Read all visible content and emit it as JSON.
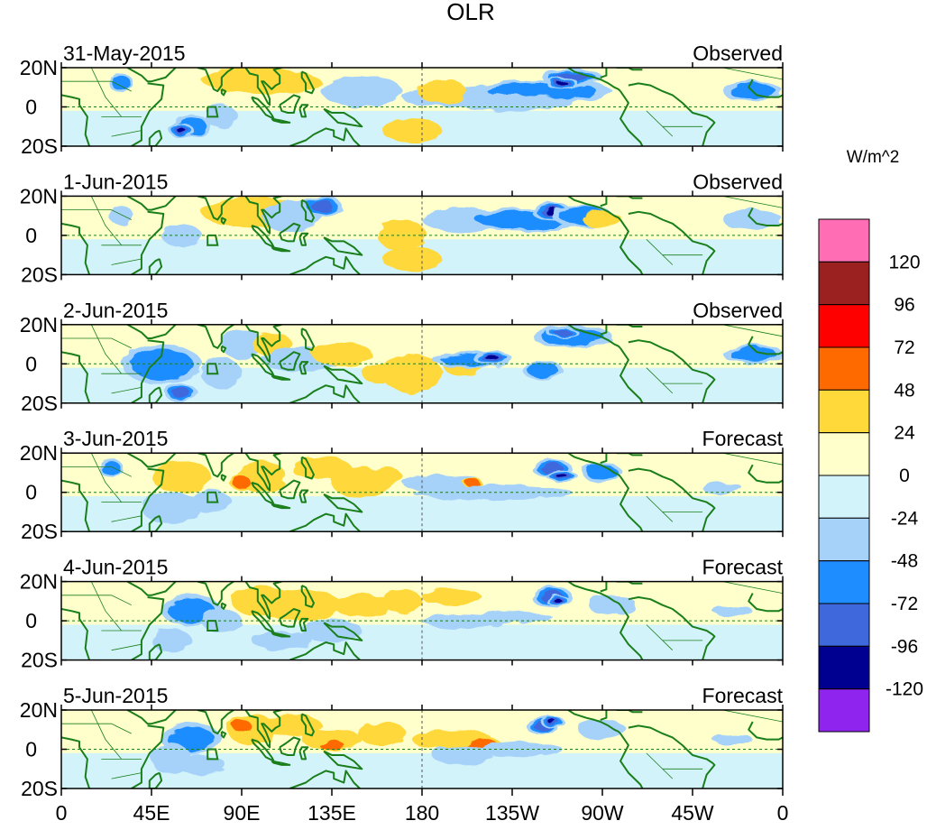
{
  "chart_data": {
    "type": "heatmap",
    "title": "OLR",
    "units": "W/m^2",
    "x_ticks": [
      "0",
      "45E",
      "90E",
      "135E",
      "180",
      "135W",
      "90W",
      "45W",
      "0"
    ],
    "y_ticks": [
      "20N",
      "0",
      "20S"
    ],
    "lon_range": [
      0,
      360
    ],
    "lat_range": [
      -20,
      20
    ],
    "colorbar": {
      "levels": [
        "120",
        "96",
        "72",
        "48",
        "24",
        "0",
        "-24",
        "-48",
        "-72",
        "-96",
        "-120"
      ],
      "colors": [
        "#ff6eb4",
        "#9b2020",
        "#ff0000",
        "#ff6a00",
        "#ffd83a",
        "#ffffcc",
        "#d3f3fb",
        "#a6d2fa",
        "#1e8dff",
        "#3f68dd",
        "#000090",
        "#9024ef"
      ]
    },
    "panels": [
      {
        "date": "31-May-2015",
        "status": "Observed",
        "blobs": [
          [
            95,
            14,
            25,
            7,
            45
          ],
          [
            112,
            12,
            18,
            6,
            30
          ],
          [
            80,
            -5,
            8,
            6,
            -40
          ],
          [
            65,
            -10,
            10,
            6,
            -70
          ],
          [
            60,
            -12,
            6,
            4,
            -100
          ],
          [
            200,
            5,
            30,
            5,
            -45
          ],
          [
            240,
            8,
            35,
            6,
            -55
          ],
          [
            255,
            15,
            15,
            5,
            -90
          ],
          [
            250,
            12,
            8,
            3,
            -110
          ],
          [
            175,
            -12,
            15,
            6,
            30
          ],
          [
            225,
            2,
            30,
            4,
            -30
          ],
          [
            345,
            8,
            15,
            5,
            -50
          ],
          [
            30,
            12,
            6,
            5,
            -70
          ],
          [
            150,
            8,
            20,
            8,
            -30
          ],
          [
            190,
            8,
            12,
            6,
            25
          ]
        ]
      },
      {
        "date": "1-Jun-2015",
        "status": "Observed",
        "blobs": [
          [
            95,
            12,
            25,
            8,
            35
          ],
          [
            115,
            10,
            15,
            8,
            -40
          ],
          [
            130,
            15,
            10,
            5,
            -75
          ],
          [
            170,
            0,
            12,
            8,
            25
          ],
          [
            175,
            -12,
            15,
            6,
            30
          ],
          [
            200,
            8,
            20,
            6,
            -45
          ],
          [
            230,
            8,
            30,
            6,
            -60
          ],
          [
            245,
            12,
            10,
            5,
            -100
          ],
          [
            260,
            10,
            15,
            6,
            -55
          ],
          [
            270,
            8,
            10,
            4,
            40
          ],
          [
            210,
            -5,
            60,
            6,
            -15
          ],
          [
            45,
            5,
            10,
            8,
            20
          ],
          [
            60,
            0,
            10,
            6,
            -35
          ],
          [
            345,
            8,
            15,
            5,
            -40
          ],
          [
            30,
            10,
            6,
            5,
            -30
          ]
        ]
      },
      {
        "date": "2-Jun-2015",
        "status": "Observed",
        "blobs": [
          [
            50,
            0,
            20,
            10,
            -50
          ],
          [
            60,
            -15,
            8,
            5,
            -80
          ],
          [
            90,
            10,
            10,
            8,
            -40
          ],
          [
            105,
            10,
            10,
            6,
            35
          ],
          [
            120,
            2,
            20,
            6,
            -35
          ],
          [
            140,
            5,
            15,
            6,
            40
          ],
          [
            160,
            -5,
            10,
            5,
            40
          ],
          [
            175,
            -5,
            15,
            10,
            30
          ],
          [
            200,
            0,
            10,
            6,
            25
          ],
          [
            205,
            2,
            20,
            4,
            -70
          ],
          [
            215,
            3,
            10,
            3,
            -110
          ],
          [
            240,
            -3,
            10,
            5,
            -50
          ],
          [
            255,
            14,
            20,
            6,
            -70
          ],
          [
            250,
            16,
            8,
            3,
            -90
          ],
          [
            345,
            5,
            15,
            5,
            -60
          ],
          [
            300,
            2,
            20,
            8,
            -20
          ],
          [
            80,
            -5,
            10,
            8,
            -45
          ]
        ]
      },
      {
        "date": "3-Jun-2015",
        "status": "Forecast",
        "blobs": [
          [
            60,
            8,
            15,
            8,
            40
          ],
          [
            100,
            8,
            12,
            8,
            45
          ],
          [
            90,
            5,
            6,
            4,
            65
          ],
          [
            130,
            12,
            15,
            6,
            35
          ],
          [
            150,
            5,
            15,
            8,
            25
          ],
          [
            55,
            -8,
            15,
            8,
            -45
          ],
          [
            75,
            -5,
            10,
            6,
            -40
          ],
          [
            25,
            12,
            6,
            5,
            -50
          ],
          [
            190,
            5,
            20,
            4,
            -25
          ],
          [
            205,
            5,
            5,
            2,
            55
          ],
          [
            215,
            0,
            40,
            4,
            -30
          ],
          [
            245,
            12,
            10,
            5,
            -80
          ],
          [
            250,
            8,
            8,
            3,
            -110
          ],
          [
            270,
            10,
            10,
            5,
            -50
          ],
          [
            330,
            2,
            10,
            3,
            -40
          ],
          [
            120,
            -10,
            20,
            6,
            -20
          ],
          [
            160,
            8,
            10,
            5,
            30
          ]
        ]
      },
      {
        "date": "4-Jun-2015",
        "status": "Forecast",
        "blobs": [
          [
            65,
            5,
            15,
            8,
            -60
          ],
          [
            80,
            0,
            10,
            6,
            -45
          ],
          [
            55,
            -10,
            10,
            6,
            -40
          ],
          [
            100,
            10,
            15,
            8,
            40
          ],
          [
            120,
            8,
            20,
            8,
            35
          ],
          [
            150,
            8,
            15,
            6,
            30
          ],
          [
            135,
            -5,
            15,
            6,
            -35
          ],
          [
            110,
            -10,
            15,
            5,
            -30
          ],
          [
            195,
            12,
            15,
            4,
            30
          ],
          [
            200,
            0,
            20,
            4,
            -40
          ],
          [
            225,
            2,
            20,
            3,
            -35
          ],
          [
            245,
            12,
            10,
            6,
            -75
          ],
          [
            248,
            10,
            6,
            3,
            -100
          ],
          [
            275,
            8,
            12,
            5,
            -45
          ],
          [
            335,
            5,
            10,
            3,
            -40
          ],
          [
            170,
            10,
            10,
            6,
            25
          ]
        ]
      },
      {
        "date": "5-Jun-2015",
        "status": "Forecast",
        "blobs": [
          [
            65,
            5,
            15,
            8,
            -55
          ],
          [
            55,
            -5,
            10,
            8,
            -45
          ],
          [
            70,
            -8,
            12,
            5,
            -35
          ],
          [
            95,
            10,
            12,
            8,
            40
          ],
          [
            90,
            12,
            6,
            4,
            70
          ],
          [
            115,
            12,
            15,
            6,
            40
          ],
          [
            135,
            5,
            15,
            5,
            45
          ],
          [
            135,
            2,
            8,
            3,
            70
          ],
          [
            160,
            8,
            12,
            6,
            30
          ],
          [
            195,
            5,
            20,
            5,
            35
          ],
          [
            210,
            2,
            10,
            4,
            55
          ],
          [
            200,
            -3,
            15,
            5,
            -30
          ],
          [
            230,
            0,
            20,
            4,
            -35
          ],
          [
            240,
            12,
            8,
            5,
            -75
          ],
          [
            245,
            14,
            6,
            3,
            -110
          ],
          [
            270,
            10,
            12,
            5,
            -40
          ],
          [
            335,
            5,
            10,
            3,
            -40
          ]
        ]
      }
    ]
  }
}
